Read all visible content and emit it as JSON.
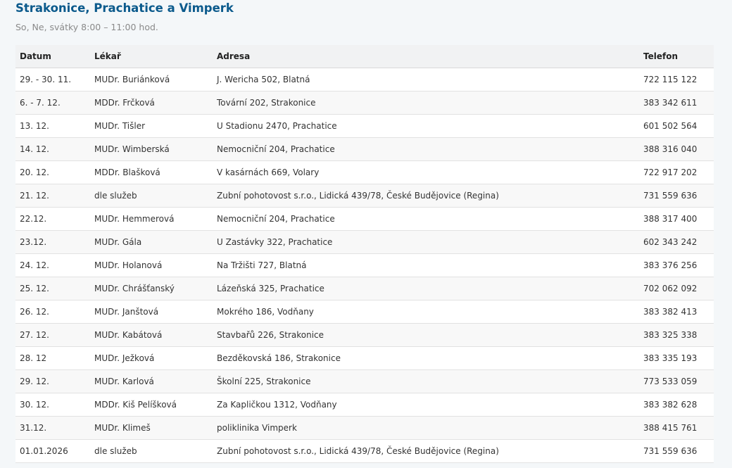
{
  "title": "Strakonice, Prachatice a Vimperk",
  "subtitle": "So, Ne, svátky 8:00 – 11:00 hod.",
  "headers": [
    "Datum",
    "Lékař",
    "Adresa",
    "Telefon"
  ],
  "rows": [
    [
      "29. - 30. 11.",
      "MUDr. Buriánková",
      "J. Wericha 502, Blatná",
      "722 115 122"
    ],
    [
      "6. - 7. 12.",
      "MDDr. Frčková",
      "Tovární 202, Strakonice",
      "383 342 611"
    ],
    [
      "13. 12.",
      "MUDr. Tišler",
      "U Stadionu 2470, Prachatice",
      "601 502 564"
    ],
    [
      "14. 12.",
      "MUDr. Wimberská",
      "Nemocniční 204, Prachatice",
      "388 316 040"
    ],
    [
      "20. 12.",
      "MDDr. Blašková",
      "V kasárnách 669, Volary",
      "722 917 202"
    ],
    [
      "21. 12.",
      "dle služeb",
      "Zubní pohotovost s.r.o., Lidická 439/78, České Budějovice (Regina)",
      "731 559 636"
    ],
    [
      "22.12.",
      "MUDr. Hemmerová",
      "Nemocniční 204, Prachatice",
      "388 317 400"
    ],
    [
      "23.12.",
      "MUDr. Gála",
      "U Zastávky 322, Prachatice",
      "602 343 242"
    ],
    [
      "24. 12.",
      "MUDr. Holanová",
      "Na Tržišti 727, Blatná",
      "383 376 256"
    ],
    [
      "25. 12.",
      "MUDr. Chrášťanský",
      "Lázeňská 325, Prachatice",
      "702 062 092"
    ],
    [
      "26. 12.",
      "MUDr. Janštová",
      "Mokrého 186, Vodňany",
      "383 382 413"
    ],
    [
      "27. 12.",
      "MUDr. Kabátová",
      "Stavbařů 226, Strakonice",
      "383 325 338"
    ],
    [
      "28. 12",
      "MUDr. Ježková",
      "Bezděkovská 186, Strakonice",
      "383 335 193"
    ],
    [
      "29. 12.",
      "MUDr. Karlová",
      "Školní 225, Strakonice",
      "773 533 059"
    ],
    [
      "30. 12.",
      "MDDr. Kiš Pelíšková",
      "Za Kapličkou 1312, Vodňany",
      "383 382 628"
    ],
    [
      "31.12.",
      "MUDr. Klimeš",
      "poliklinika Vimperk",
      "388 415 761"
    ],
    [
      "01.01.2026",
      "dle služeb",
      "Zubní pohotovost s.r.o., Lidická 439/78, České Budějovice (Regina)",
      "731 559 636"
    ]
  ]
}
